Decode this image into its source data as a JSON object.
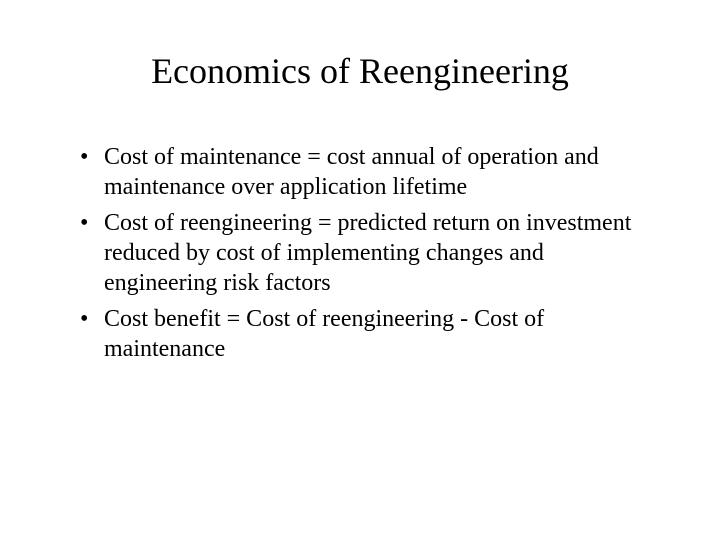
{
  "slide": {
    "title": "Economics of Reengineering",
    "bullets": [
      "Cost of maintenance = cost annual of operation and maintenance over application lifetime",
      "Cost of reengineering = predicted return on investment reduced by cost of implementing changes and engineering risk factors",
      "Cost benefit = Cost of reengineering - Cost of maintenance"
    ],
    "title_fontsize": 36,
    "body_fontsize": 24,
    "text_color": "#000000",
    "background_color": "#ffffff",
    "font_family": "Times New Roman"
  }
}
